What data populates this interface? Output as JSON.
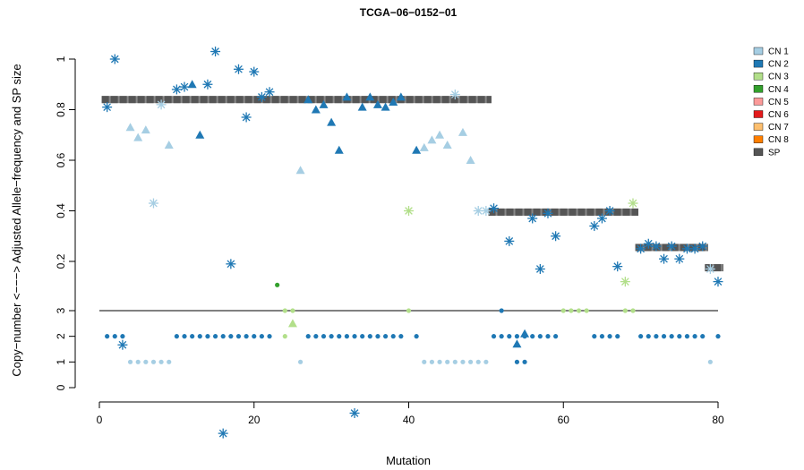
{
  "chart_data": {
    "type": "scatter",
    "title": "TCGA−06−0152−01",
    "xlabel": "Mutation",
    "ylabel": "Copy−number <−−−> Adjusted Allele−frequency and SP size",
    "xlim": [
      0,
      81
    ],
    "x_ticks": [
      0,
      20,
      40,
      60,
      80
    ],
    "y_ticks_cn": [
      "0",
      "1",
      "2",
      "3"
    ],
    "y_ticks_af": [
      "0.2",
      "0.4",
      "0.6",
      "0.8",
      "1"
    ],
    "cn_threshold_line": 3,
    "colors": {
      "CN 1": "#a6cee3",
      "CN 2": "#1f78b4",
      "CN 3": "#b2df8a",
      "CN 4": "#33a02c",
      "CN 5": "#fb9a99",
      "CN 6": "#e31a1c",
      "CN 7": "#fdbf6f",
      "CN 8": "#ff7f00",
      "SP": "#555555"
    },
    "legend": {
      "position": "top-right",
      "entries": [
        "CN 1",
        "CN 2",
        "CN 3",
        "CN 4",
        "CN 5",
        "CN 6",
        "CN 7",
        "CN 8",
        "SP"
      ]
    },
    "sp_segments": [
      {
        "x": [
          1,
          50
        ],
        "value": 0.84
      },
      {
        "x": [
          51,
          69
        ],
        "value": 0.395
      },
      {
        "x": [
          70,
          78
        ],
        "value": 0.255
      },
      {
        "x": [
          79,
          80
        ],
        "value": 0.175
      }
    ],
    "allele_frequency": [
      {
        "x": 1,
        "af": 0.81,
        "cn": 2,
        "shape": "star"
      },
      {
        "x": 2,
        "af": 1.0,
        "cn": 2,
        "shape": "star"
      },
      {
        "x": 3,
        "af": -0.13,
        "cn": 2,
        "shape": "star"
      },
      {
        "x": 4,
        "af": 0.73,
        "cn": 1,
        "shape": "triangle"
      },
      {
        "x": 5,
        "af": 0.69,
        "cn": 1,
        "shape": "triangle"
      },
      {
        "x": 6,
        "af": 0.72,
        "cn": 1,
        "shape": "triangle"
      },
      {
        "x": 7,
        "af": 0.43,
        "cn": 1,
        "shape": "star"
      },
      {
        "x": 8,
        "af": 0.82,
        "cn": 1,
        "shape": "star"
      },
      {
        "x": 9,
        "af": 0.66,
        "cn": 1,
        "shape": "triangle"
      },
      {
        "x": 10,
        "af": 0.88,
        "cn": 2,
        "shape": "star"
      },
      {
        "x": 11,
        "af": 0.89,
        "cn": 2,
        "shape": "star"
      },
      {
        "x": 12,
        "af": 0.9,
        "cn": 2,
        "shape": "triangle"
      },
      {
        "x": 13,
        "af": 0.7,
        "cn": 2,
        "shape": "triangle"
      },
      {
        "x": 14,
        "af": 0.9,
        "cn": 2,
        "shape": "star"
      },
      {
        "x": 15,
        "af": 1.03,
        "cn": 2,
        "shape": "star"
      },
      {
        "x": 16,
        "af": -0.48,
        "cn": 2,
        "shape": "star"
      },
      {
        "x": 17,
        "af": 0.19,
        "cn": 2,
        "shape": "star"
      },
      {
        "x": 18,
        "af": 0.96,
        "cn": 2,
        "shape": "star"
      },
      {
        "x": 19,
        "af": 0.77,
        "cn": 2,
        "shape": "star"
      },
      {
        "x": 20,
        "af": 0.95,
        "cn": 2,
        "shape": "star"
      },
      {
        "x": 21,
        "af": 0.85,
        "cn": 2,
        "shape": "star"
      },
      {
        "x": 22,
        "af": 0.87,
        "cn": 2,
        "shape": "star"
      },
      {
        "x": 26,
        "af": 0.56,
        "cn": 1,
        "shape": "triangle"
      },
      {
        "x": 27,
        "af": 0.84,
        "cn": 2,
        "shape": "triangle"
      },
      {
        "x": 28,
        "af": 0.8,
        "cn": 2,
        "shape": "triangle"
      },
      {
        "x": 29,
        "af": 0.82,
        "cn": 2,
        "shape": "triangle"
      },
      {
        "x": 30,
        "af": 0.75,
        "cn": 2,
        "shape": "triangle"
      },
      {
        "x": 31,
        "af": 0.64,
        "cn": 2,
        "shape": "triangle"
      },
      {
        "x": 32,
        "af": 0.85,
        "cn": 2,
        "shape": "triangle"
      },
      {
        "x": 33,
        "af": -0.4,
        "cn": 2,
        "shape": "star"
      },
      {
        "x": 34,
        "af": 0.81,
        "cn": 2,
        "shape": "triangle"
      },
      {
        "x": 35,
        "af": 0.85,
        "cn": 2,
        "shape": "triangle"
      },
      {
        "x": 36,
        "af": 0.82,
        "cn": 2,
        "shape": "triangle"
      },
      {
        "x": 37,
        "af": 0.81,
        "cn": 2,
        "shape": "triangle"
      },
      {
        "x": 38,
        "af": 0.83,
        "cn": 2,
        "shape": "triangle"
      },
      {
        "x": 39,
        "af": 0.85,
        "cn": 2,
        "shape": "triangle"
      },
      {
        "x": 40,
        "af": 0.4,
        "cn": 3,
        "shape": "star"
      },
      {
        "x": 41,
        "af": 0.64,
        "cn": 2,
        "shape": "triangle"
      },
      {
        "x": 42,
        "af": 0.65,
        "cn": 1,
        "shape": "triangle"
      },
      {
        "x": 43,
        "af": 0.68,
        "cn": 1,
        "shape": "triangle"
      },
      {
        "x": 44,
        "af": 0.7,
        "cn": 1,
        "shape": "triangle"
      },
      {
        "x": 45,
        "af": 0.66,
        "cn": 1,
        "shape": "triangle"
      },
      {
        "x": 46,
        "af": 0.86,
        "cn": 1,
        "shape": "star"
      },
      {
        "x": 47,
        "af": 0.71,
        "cn": 1,
        "shape": "triangle"
      },
      {
        "x": 48,
        "af": 0.6,
        "cn": 1,
        "shape": "triangle"
      },
      {
        "x": 49,
        "af": 0.4,
        "cn": 1,
        "shape": "star"
      },
      {
        "x": 50,
        "af": 0.4,
        "cn": 1,
        "shape": "star"
      },
      {
        "x": 51,
        "af": 0.41,
        "cn": 2,
        "shape": "star"
      },
      {
        "x": 53,
        "af": 0.28,
        "cn": 2,
        "shape": "star"
      },
      {
        "x": 56,
        "af": 0.37,
        "cn": 2,
        "shape": "star"
      },
      {
        "x": 57,
        "af": 0.17,
        "cn": 2,
        "shape": "star"
      },
      {
        "x": 58,
        "af": 0.39,
        "cn": 2,
        "shape": "star"
      },
      {
        "x": 59,
        "af": 0.3,
        "cn": 2,
        "shape": "star"
      },
      {
        "x": 64,
        "af": 0.34,
        "cn": 2,
        "shape": "star"
      },
      {
        "x": 65,
        "af": 0.37,
        "cn": 2,
        "shape": "star"
      },
      {
        "x": 66,
        "af": 0.4,
        "cn": 2,
        "shape": "star"
      },
      {
        "x": 67,
        "af": 0.18,
        "cn": 2,
        "shape": "star"
      },
      {
        "x": 68,
        "af": 0.12,
        "cn": 3,
        "shape": "star"
      },
      {
        "x": 69,
        "af": 0.43,
        "cn": 3,
        "shape": "star"
      },
      {
        "x": 70,
        "af": 0.25,
        "cn": 2,
        "shape": "star"
      },
      {
        "x": 71,
        "af": 0.27,
        "cn": 2,
        "shape": "star"
      },
      {
        "x": 72,
        "af": 0.26,
        "cn": 2,
        "shape": "star"
      },
      {
        "x": 73,
        "af": 0.21,
        "cn": 2,
        "shape": "star"
      },
      {
        "x": 74,
        "af": 0.26,
        "cn": 2,
        "shape": "star"
      },
      {
        "x": 75,
        "af": 0.21,
        "cn": 2,
        "shape": "star"
      },
      {
        "x": 76,
        "af": 0.25,
        "cn": 2,
        "shape": "star"
      },
      {
        "x": 77,
        "af": 0.25,
        "cn": 2,
        "shape": "star"
      },
      {
        "x": 78,
        "af": 0.26,
        "cn": 2,
        "shape": "star"
      },
      {
        "x": 79,
        "af": 0.17,
        "cn": 1,
        "shape": "star"
      },
      {
        "x": 80,
        "af": 0.12,
        "cn": 2,
        "shape": "star"
      }
    ],
    "copy_number": [
      {
        "x": 1,
        "cn": 2
      },
      {
        "x": 2,
        "cn": 2
      },
      {
        "x": 3,
        "cn": 2
      },
      {
        "x": 4,
        "cn": 1
      },
      {
        "x": 5,
        "cn": 1
      },
      {
        "x": 6,
        "cn": 1
      },
      {
        "x": 7,
        "cn": 1
      },
      {
        "x": 8,
        "cn": 1
      },
      {
        "x": 9,
        "cn": 1
      },
      {
        "x": 10,
        "cn": 2
      },
      {
        "x": 11,
        "cn": 2
      },
      {
        "x": 12,
        "cn": 2
      },
      {
        "x": 13,
        "cn": 2
      },
      {
        "x": 14,
        "cn": 2
      },
      {
        "x": 15,
        "cn": 2
      },
      {
        "x": 16,
        "cn": 2
      },
      {
        "x": 17,
        "cn": 2
      },
      {
        "x": 18,
        "cn": 2
      },
      {
        "x": 19,
        "cn": 2
      },
      {
        "x": 20,
        "cn": 2
      },
      {
        "x": 21,
        "cn": 2
      },
      {
        "x": 22,
        "cn": 2
      },
      {
        "x": 23,
        "cn": 4
      },
      {
        "x": 24,
        "cn": 3
      },
      {
        "x": 25,
        "cn": 3
      },
      {
        "x": 26,
        "cn": 1
      },
      {
        "x": 27,
        "cn": 2
      },
      {
        "x": 28,
        "cn": 2
      },
      {
        "x": 29,
        "cn": 2
      },
      {
        "x": 30,
        "cn": 2
      },
      {
        "x": 31,
        "cn": 2
      },
      {
        "x": 32,
        "cn": 2
      },
      {
        "x": 33,
        "cn": 2
      },
      {
        "x": 34,
        "cn": 2
      },
      {
        "x": 35,
        "cn": 2
      },
      {
        "x": 36,
        "cn": 2
      },
      {
        "x": 37,
        "cn": 2
      },
      {
        "x": 38,
        "cn": 2
      },
      {
        "x": 39,
        "cn": 2
      },
      {
        "x": 40,
        "cn": 3
      },
      {
        "x": 41,
        "cn": 2
      },
      {
        "x": 42,
        "cn": 1
      },
      {
        "x": 43,
        "cn": 1
      },
      {
        "x": 44,
        "cn": 1
      },
      {
        "x": 45,
        "cn": 1
      },
      {
        "x": 46,
        "cn": 1
      },
      {
        "x": 47,
        "cn": 1
      },
      {
        "x": 48,
        "cn": 1
      },
      {
        "x": 49,
        "cn": 1
      },
      {
        "x": 50,
        "cn": 1
      },
      {
        "x": 51,
        "cn": 2
      },
      {
        "x": 52,
        "cn": 2
      },
      {
        "x": 53,
        "cn": 2
      },
      {
        "x": 54,
        "cn": 2
      },
      {
        "x": 55,
        "cn": 2
      },
      {
        "x": 56,
        "cn": 2
      },
      {
        "x": 57,
        "cn": 2
      },
      {
        "x": 58,
        "cn": 2
      },
      {
        "x": 59,
        "cn": 2
      },
      {
        "x": 60,
        "cn": 3
      },
      {
        "x": 61,
        "cn": 3
      },
      {
        "x": 62,
        "cn": 3
      },
      {
        "x": 63,
        "cn": 3
      },
      {
        "x": 64,
        "cn": 2
      },
      {
        "x": 65,
        "cn": 2
      },
      {
        "x": 66,
        "cn": 2
      },
      {
        "x": 67,
        "cn": 2
      },
      {
        "x": 68,
        "cn": 3
      },
      {
        "x": 69,
        "cn": 3
      },
      {
        "x": 70,
        "cn": 2
      },
      {
        "x": 71,
        "cn": 2
      },
      {
        "x": 72,
        "cn": 2
      },
      {
        "x": 73,
        "cn": 2
      },
      {
        "x": 74,
        "cn": 2
      },
      {
        "x": 75,
        "cn": 2
      },
      {
        "x": 76,
        "cn": 2
      },
      {
        "x": 77,
        "cn": 2
      },
      {
        "x": 78,
        "cn": 2
      },
      {
        "x": 79,
        "cn": 1
      },
      {
        "x": 80,
        "cn": 2
      }
    ],
    "copy_number_extra": [
      {
        "x": 52,
        "cn": 3,
        "marker": "circle",
        "color_cn": 2
      },
      {
        "x": 54,
        "cn": 1.7,
        "marker": "triangle",
        "color_cn": 2
      },
      {
        "x": 54,
        "cn": 1,
        "marker": "circle",
        "color_cn": 2
      },
      {
        "x": 55,
        "cn": 2.1,
        "marker": "triangle",
        "color_cn": 2
      },
      {
        "x": 55,
        "cn": 1,
        "marker": "circle",
        "color_cn": 2
      },
      {
        "x": 25,
        "cn": 2.5,
        "marker": "triangle",
        "color_cn": 3
      },
      {
        "x": 24,
        "cn": 2,
        "marker": "circle",
        "color_cn": 3
      }
    ]
  }
}
